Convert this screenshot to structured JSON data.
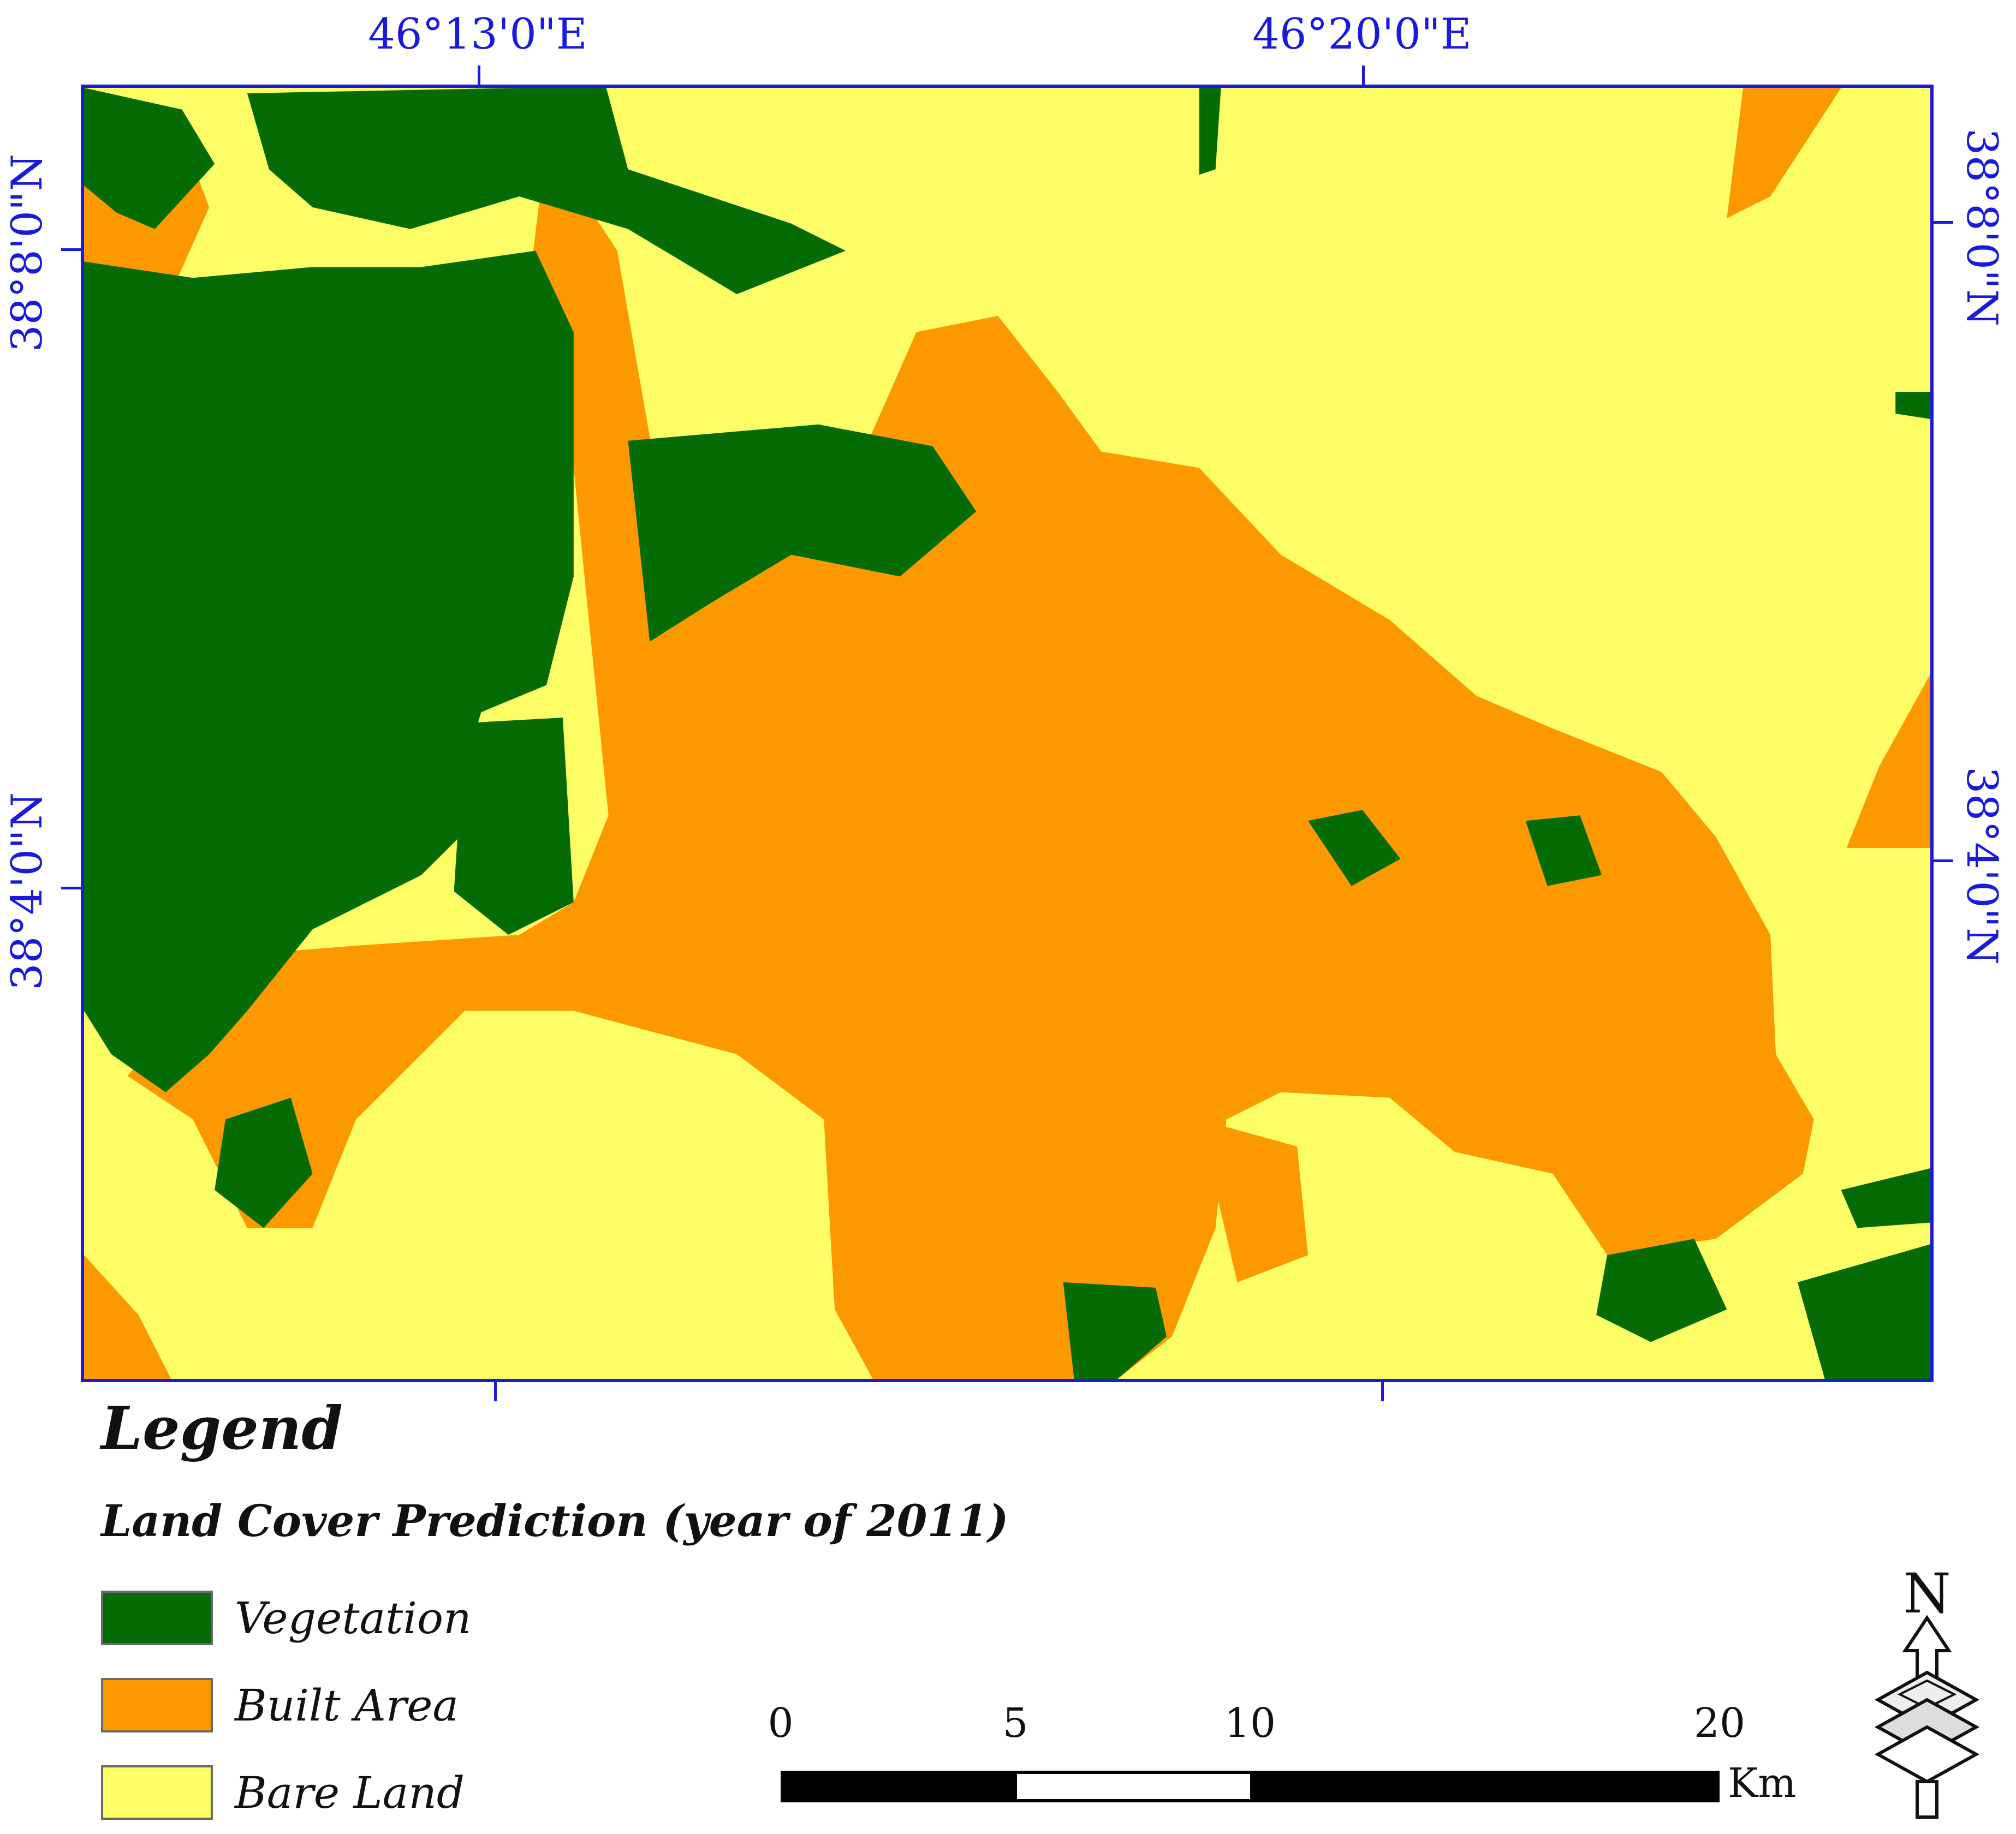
{
  "map": {
    "lon_labels": [
      "46°13'0\"E",
      "46°20'0\"E"
    ],
    "lat_labels_left": [
      "38°8'0\"N",
      "38°4'0\"N"
    ],
    "lat_labels_right": [
      "38°8'0\"N",
      "38°4'0\"N"
    ]
  },
  "legend": {
    "title": "Legend",
    "subtitle": "Land Cover Prediction (year of 2011)",
    "items": [
      {
        "label": "Vegetation",
        "color": "#056b05"
      },
      {
        "label": "Built Area",
        "color": "#fc9800"
      },
      {
        "label": "Bare Land",
        "color": "#fdfd66"
      }
    ]
  },
  "scale_bar": {
    "ticks": [
      "0",
      "5",
      "10",
      "20"
    ],
    "unit": "Km"
  },
  "north_arrow": {
    "label": "N",
    "icon": "north-arrow-icon"
  }
}
